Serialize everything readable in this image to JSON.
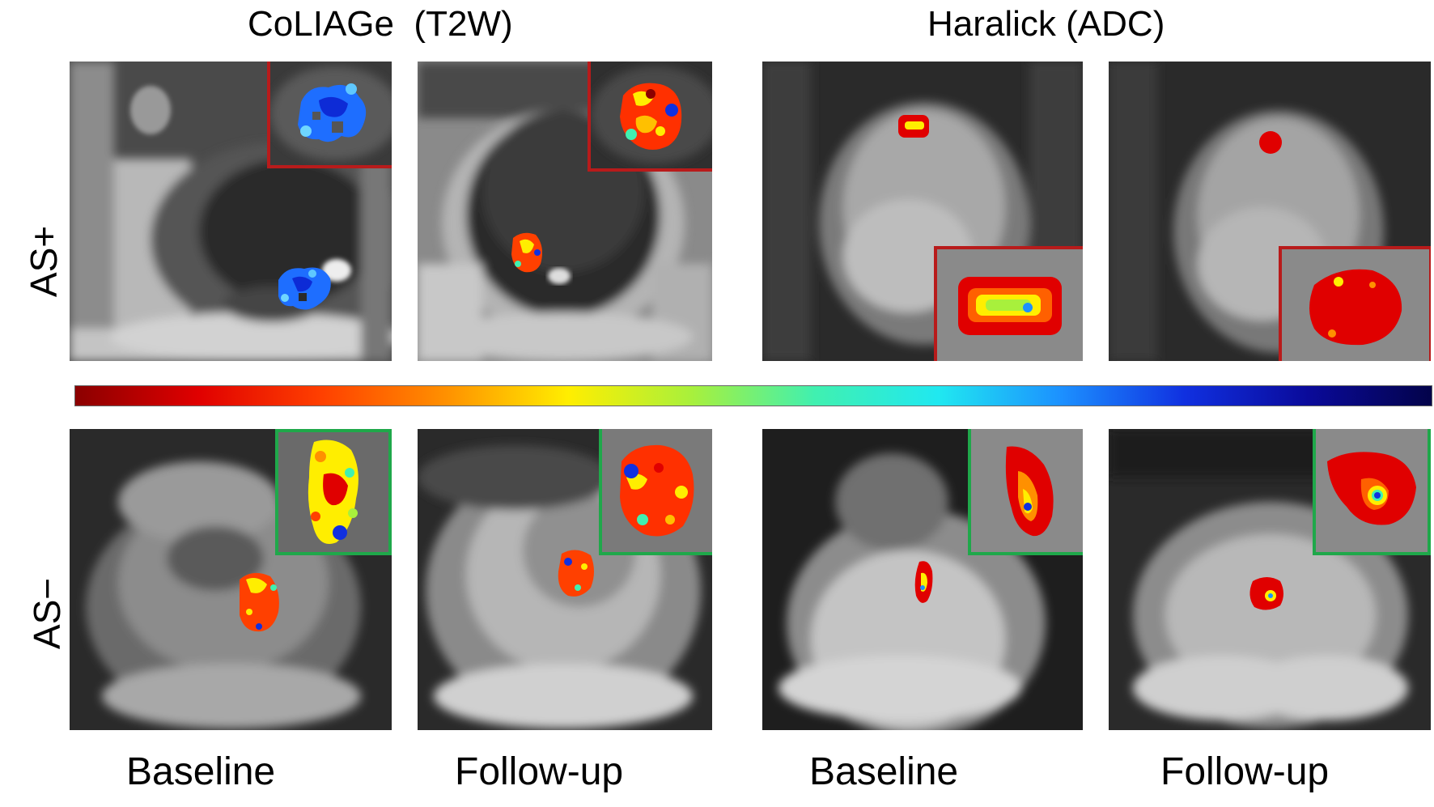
{
  "headers": {
    "coliage": "CoLIAGe  (T2W)",
    "haralick": "Haralick (ADC)"
  },
  "row_labels": {
    "as_plus": "AS+",
    "as_minus": "AS−"
  },
  "column_labels": {
    "col1": "Baseline",
    "col2": "Follow-up",
    "col3": "Baseline",
    "col4": "Follow-up"
  },
  "colorbar": {
    "stops": [
      "#8b0000",
      "#e00000",
      "#ff4000",
      "#ff9000",
      "#ffee00",
      "#a8f03c",
      "#40f0b0",
      "#20e8f0",
      "#1c90ff",
      "#1030e0",
      "#0a0a9a",
      "#03034a"
    ]
  },
  "inset_colors": {
    "as_plus": "#b81b1b",
    "as_minus": "#1fa84a"
  }
}
